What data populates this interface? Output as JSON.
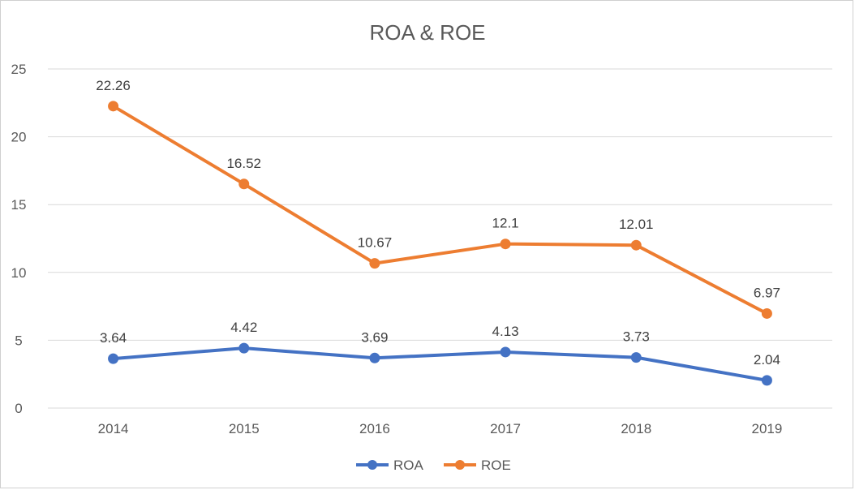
{
  "chart_data": {
    "type": "line",
    "title": "ROA & ROE",
    "xlabel": "",
    "ylabel": "",
    "categories": [
      "2014",
      "2015",
      "2016",
      "2017",
      "2018",
      "2019"
    ],
    "ylim": [
      0,
      25
    ],
    "yticks": [
      "0",
      "5",
      "10",
      "15",
      "20",
      "25"
    ],
    "grid": true,
    "legend": "bottom",
    "series": [
      {
        "name": "ROA",
        "color": "#4472C4",
        "values": [
          3.64,
          4.42,
          3.69,
          4.13,
          3.73,
          2.04
        ],
        "labels": [
          "3.64",
          "4.42",
          "3.69",
          "4.13",
          "3.73",
          "2.04"
        ]
      },
      {
        "name": "ROE",
        "color": "#ED7D31",
        "values": [
          22.26,
          16.52,
          10.67,
          12.1,
          12.01,
          6.97
        ],
        "labels": [
          "22.26",
          "16.52",
          "10.67",
          "12.1",
          "12.01",
          "6.97"
        ]
      }
    ]
  }
}
